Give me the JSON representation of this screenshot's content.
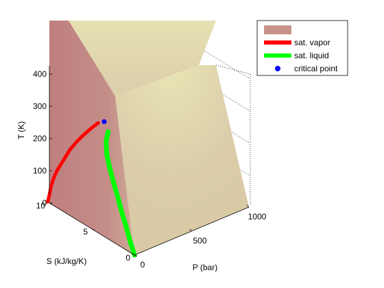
{
  "chart_data": {
    "type": "surface3d",
    "xlabel": "P (bar)",
    "ylabel": "S (kJ/kg/K)",
    "zlabel": "T (K)",
    "x_ticks": [
      "0",
      "500",
      "1000"
    ],
    "y_ticks": [
      "0",
      "5",
      "10"
    ],
    "z_ticks": [
      "0",
      "100",
      "200",
      "300",
      "400"
    ],
    "xlim": [
      0,
      1000
    ],
    "ylim": [
      0,
      10
    ],
    "zlim": [
      0,
      400
    ],
    "colors": {
      "surface_light": "#e8e4b4",
      "surface_mid": "#dccdaa",
      "surface_dark": "#bf7f7f",
      "vapor": "#ff0000",
      "liquid": "#00ff00",
      "critical": "#0000ff"
    },
    "legend": {
      "position": "top-right",
      "entries": [
        "",
        "sat. vapor",
        "sat. liquid",
        "critical point"
      ]
    },
    "series": [
      {
        "name": "sat. vapor",
        "s": [
          10.2,
          10.0,
          9.8,
          9.5,
          9.1,
          8.6,
          8.1,
          7.6,
          7.0,
          6.5,
          6.0,
          5.6
        ],
        "t": [
          0,
          25,
          55,
          85,
          115,
          145,
          175,
          205,
          235,
          260,
          285,
          305
        ],
        "p": [
          0,
          0,
          0,
          0,
          0,
          1,
          2,
          5,
          12,
          28,
          60,
          100
        ]
      },
      {
        "name": "sat. liquid",
        "s": [
          0.0,
          0.5,
          1.0,
          1.5,
          2.0,
          2.5,
          3.0,
          3.5,
          4.0,
          4.3
        ],
        "t": [
          0,
          35,
          75,
          110,
          150,
          185,
          220,
          250,
          280,
          300
        ],
        "p": [
          0,
          0,
          0,
          0,
          1,
          3,
          8,
          20,
          50,
          90
        ]
      },
      {
        "name": "critical point",
        "s": [
          4.9
        ],
        "t": [
          320
        ],
        "p": [
          100
        ]
      }
    ]
  }
}
